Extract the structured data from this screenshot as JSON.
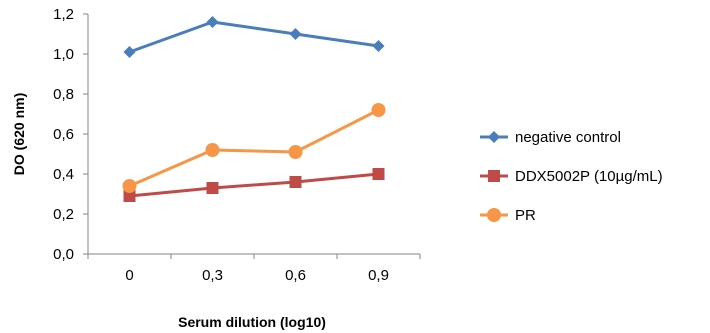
{
  "chart_data": {
    "type": "line",
    "categories": [
      "0",
      "0,3",
      "0,6",
      "0,9"
    ],
    "series": [
      {
        "name": "negative control",
        "values": [
          1.01,
          1.16,
          1.1,
          1.04
        ],
        "color": "#4a7ebb",
        "marker": "diamond"
      },
      {
        "name": "DDX5002P (10µg/mL)",
        "values": [
          0.29,
          0.33,
          0.36,
          0.4
        ],
        "color": "#be4b48",
        "marker": "square"
      },
      {
        "name": "PR",
        "values": [
          0.34,
          0.52,
          0.51,
          0.72
        ],
        "color": "#f79646",
        "marker": "circle"
      }
    ],
    "y_ticks": [
      "0,0",
      "0,2",
      "0,4",
      "0,6",
      "0,8",
      "1,0",
      "1,2"
    ],
    "ylim": [
      0,
      1.2
    ],
    "xlabel": "Serum dilution (log10)",
    "ylabel": "DO (620 nm)",
    "grid": false,
    "legend_position": "right"
  }
}
